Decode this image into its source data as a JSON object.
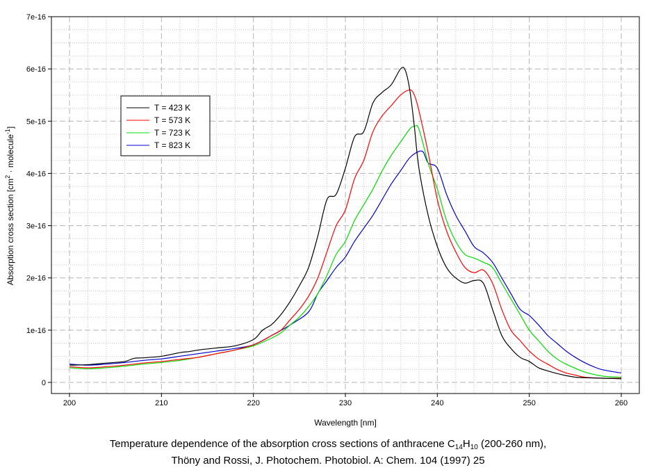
{
  "chart_data": {
    "type": "line",
    "xlabel": "Wavelength [nm]",
    "ylabel": {
      "pre": "Absorption cross section [cm",
      "sup1": "2",
      "mid": " · molecule",
      "sup2": "-1",
      "post": "]"
    },
    "xlim": [
      198,
      262
    ],
    "ylim": [
      -0.2,
      7.0
    ],
    "y_exponent": "1e-16",
    "x_ticks": [
      200,
      210,
      220,
      230,
      240,
      250,
      260
    ],
    "y_ticks": [
      {
        "value": 0,
        "label": "0"
      },
      {
        "value": 1,
        "label": "1e-16"
      },
      {
        "value": 2,
        "label": "2e-16"
      },
      {
        "value": 3,
        "label": "3e-16"
      },
      {
        "value": 4,
        "label": "4e-16"
      },
      {
        "value": 5,
        "label": "5e-16"
      },
      {
        "value": 6,
        "label": "6e-16"
      },
      {
        "value": 7,
        "label": "7e-16"
      }
    ],
    "grid": true,
    "legend_position": "upper-left",
    "series": [
      {
        "name": "T = 423 K",
        "color": "#000000",
        "x": [
          200,
          202,
          204,
          206,
          207,
          208,
          210,
          212,
          213,
          214,
          216,
          218,
          220,
          221,
          222,
          223,
          224,
          225,
          226,
          227,
          228,
          229,
          230,
          231,
          232,
          233,
          234,
          235,
          236,
          236.5,
          237,
          237.5,
          238,
          239,
          240,
          241,
          242,
          243,
          244,
          245,
          246,
          247,
          248,
          249,
          250,
          251,
          252,
          253,
          254,
          255,
          256,
          258,
          260
        ],
        "y": [
          0.33,
          0.34,
          0.37,
          0.4,
          0.46,
          0.47,
          0.5,
          0.57,
          0.59,
          0.62,
          0.66,
          0.7,
          0.82,
          1.0,
          1.11,
          1.3,
          1.55,
          1.85,
          2.2,
          2.8,
          3.5,
          3.6,
          4.1,
          4.7,
          4.8,
          5.35,
          5.55,
          5.7,
          6.0,
          5.98,
          5.6,
          4.9,
          4.1,
          3.2,
          2.6,
          2.2,
          2.0,
          1.9,
          1.95,
          1.9,
          1.4,
          0.9,
          0.65,
          0.48,
          0.4,
          0.28,
          0.22,
          0.17,
          0.13,
          0.1,
          0.09,
          0.08,
          0.07
        ]
      },
      {
        "name": "T = 573 K",
        "color": "#ff0000",
        "x": [
          200,
          202,
          204,
          206,
          208,
          210,
          212,
          214,
          216,
          218,
          220,
          221,
          222,
          223,
          224,
          225,
          226,
          227,
          228,
          229,
          230,
          231,
          232,
          233,
          234,
          235,
          236,
          237,
          237.5,
          238,
          239,
          240,
          241,
          242,
          243,
          244,
          245,
          246,
          247,
          248,
          249,
          250,
          251,
          252,
          253,
          254,
          255,
          256,
          258,
          260
        ],
        "y": [
          0.3,
          0.28,
          0.3,
          0.33,
          0.37,
          0.4,
          0.44,
          0.48,
          0.55,
          0.62,
          0.72,
          0.8,
          0.9,
          1.0,
          1.2,
          1.4,
          1.65,
          2.0,
          2.5,
          3.0,
          3.3,
          3.9,
          4.25,
          4.8,
          5.1,
          5.3,
          5.5,
          5.6,
          5.5,
          5.2,
          4.4,
          3.5,
          2.9,
          2.5,
          2.2,
          2.1,
          2.15,
          1.9,
          1.4,
          1.0,
          0.8,
          0.6,
          0.45,
          0.35,
          0.25,
          0.18,
          0.14,
          0.1,
          0.08,
          0.08
        ]
      },
      {
        "name": "T = 723 K",
        "color": "#00dd00",
        "x": [
          200,
          202,
          204,
          206,
          208,
          210,
          212,
          214,
          216,
          218,
          220,
          222,
          223,
          224,
          225,
          226,
          227,
          228,
          229,
          230,
          231,
          232,
          233,
          234,
          235,
          236,
          237,
          237.5,
          238,
          239,
          240,
          241,
          242,
          243,
          244,
          245,
          246,
          247,
          248,
          249,
          250,
          251,
          252,
          253,
          254,
          256,
          258,
          260
        ],
        "y": [
          0.28,
          0.26,
          0.28,
          0.31,
          0.35,
          0.38,
          0.42,
          0.48,
          0.55,
          0.62,
          0.7,
          0.85,
          0.95,
          1.1,
          1.25,
          1.45,
          1.7,
          2.05,
          2.45,
          2.7,
          3.1,
          3.4,
          3.7,
          4.05,
          4.35,
          4.6,
          4.85,
          4.9,
          4.85,
          4.2,
          3.7,
          3.1,
          2.7,
          2.45,
          2.38,
          2.3,
          2.2,
          1.9,
          1.6,
          1.3,
          1.0,
          0.8,
          0.6,
          0.45,
          0.35,
          0.2,
          0.12,
          0.1
        ]
      },
      {
        "name": "T = 823 K",
        "color": "#0000cc",
        "x": [
          200,
          202,
          204,
          206,
          208,
          210,
          212,
          214,
          216,
          218,
          220,
          222,
          224,
          226,
          227,
          228,
          229,
          230,
          231,
          232,
          233,
          234,
          235,
          236,
          237,
          238,
          238.5,
          239,
          240,
          241,
          242,
          243,
          244,
          245,
          246,
          247,
          248,
          249,
          250,
          251,
          252,
          253,
          254,
          255,
          256,
          257,
          258,
          260
        ],
        "y": [
          0.35,
          0.33,
          0.35,
          0.38,
          0.42,
          0.45,
          0.5,
          0.55,
          0.6,
          0.65,
          0.72,
          0.9,
          1.1,
          1.35,
          1.7,
          1.95,
          2.2,
          2.4,
          2.7,
          2.95,
          3.2,
          3.5,
          3.8,
          4.05,
          4.3,
          4.42,
          4.4,
          4.2,
          4.1,
          3.6,
          3.2,
          2.9,
          2.6,
          2.48,
          2.3,
          2.0,
          1.7,
          1.4,
          1.28,
          1.1,
          0.9,
          0.75,
          0.6,
          0.48,
          0.38,
          0.3,
          0.24,
          0.18
        ]
      }
    ]
  },
  "caption": {
    "line1_pre": "Temperature dependence of the absorption cross sections of anthracene C",
    "line1_sub1": "14",
    "line1_mid": "H",
    "line1_sub2": "10",
    "line1_post": " (200-260 nm),",
    "line2": "Thöny and Rossi, J. Photochem. Photobiol. A: Chem. 104 (1997) 25"
  }
}
